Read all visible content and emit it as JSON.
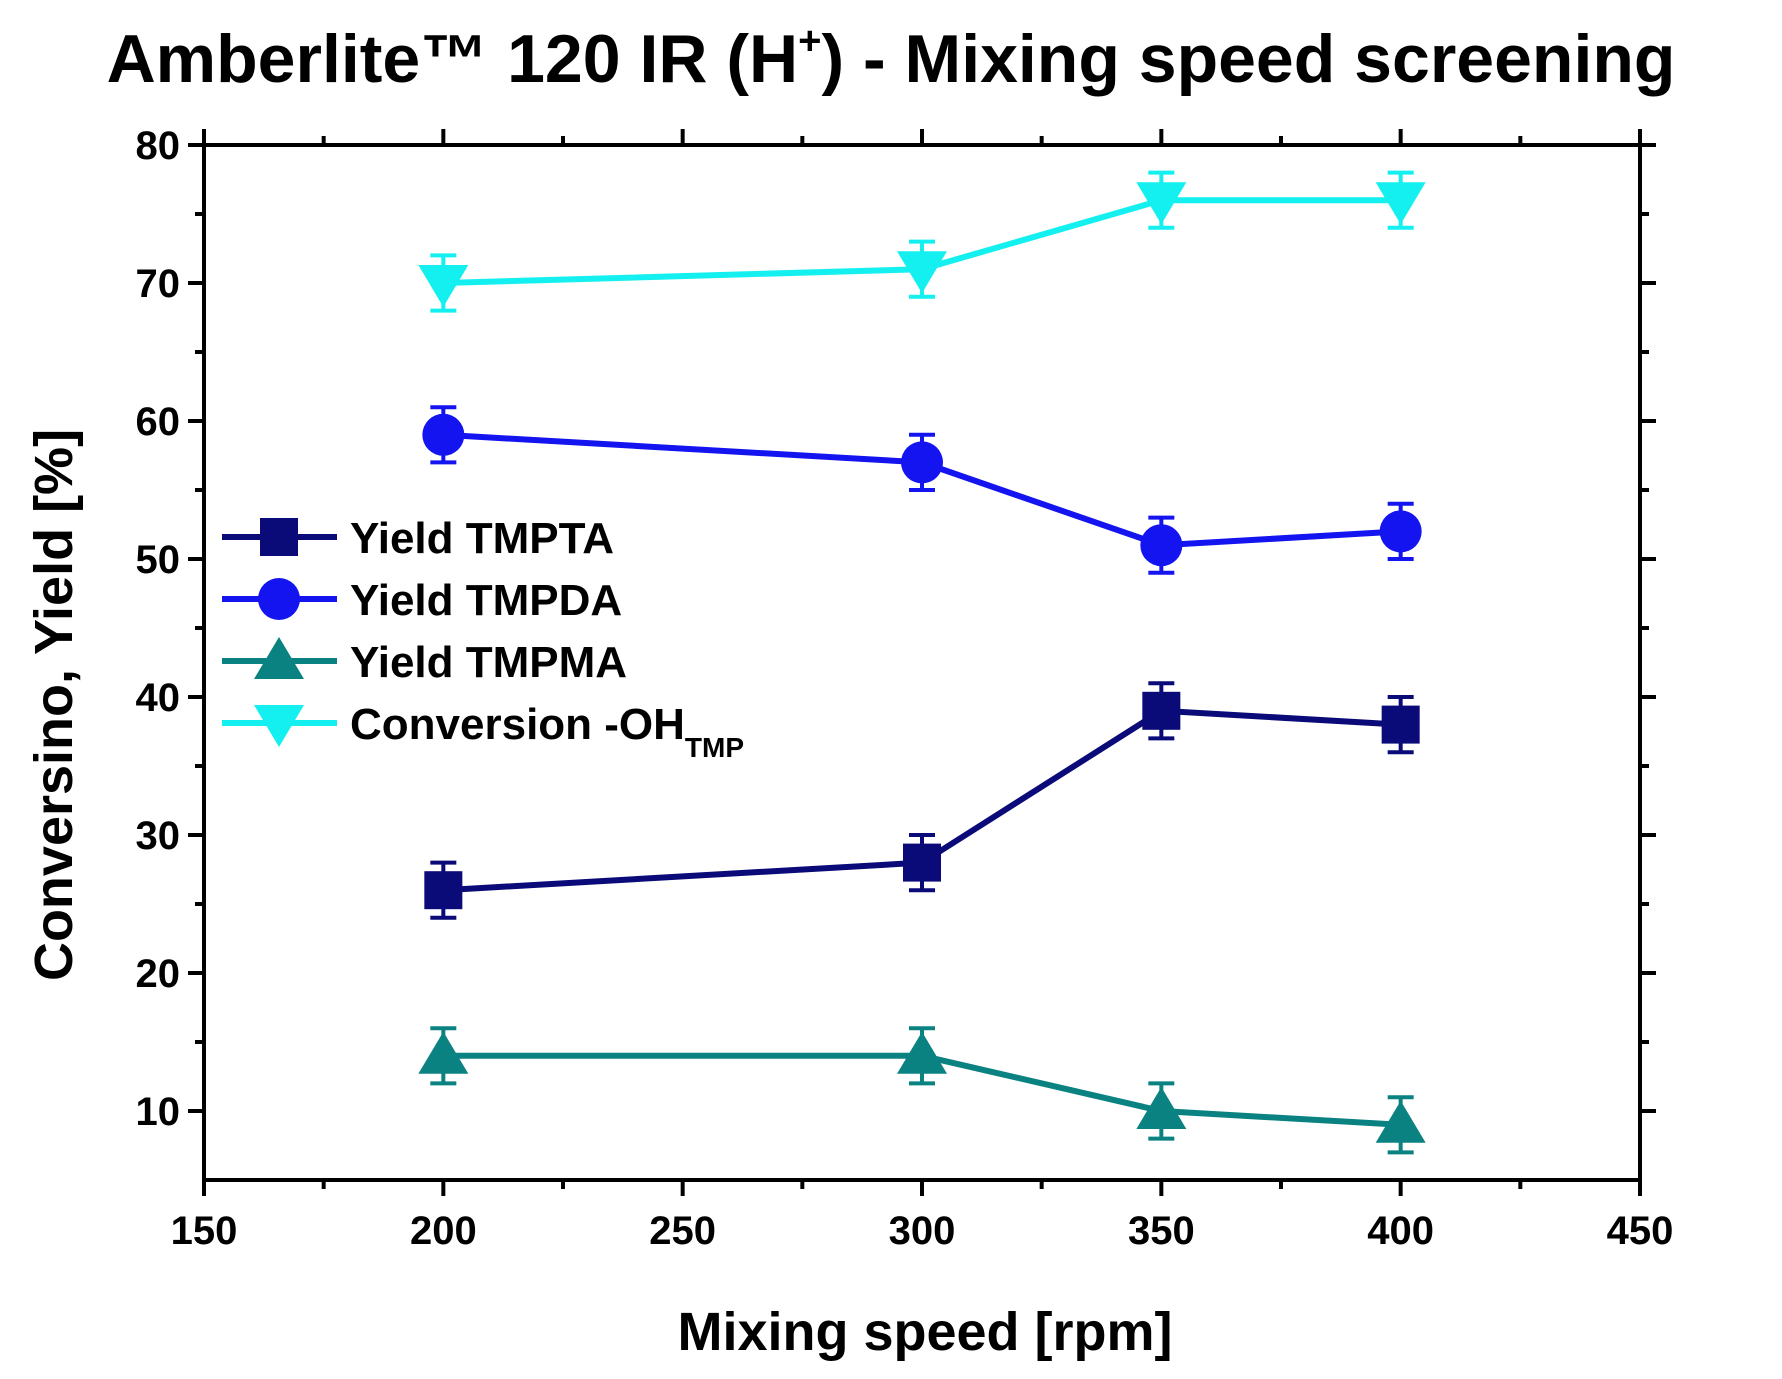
{
  "chart_data": {
    "type": "line",
    "title": "Amberlite™ 120 IR (H+) - Mixing speed screening",
    "title_parts": {
      "main": "Amberlite™ 120 IR (H",
      "superscript": "+",
      "tail": ") - Mixing speed screening"
    },
    "xlabel": "Mixing speed [rpm]",
    "ylabel": "Conversino, Yield [%]",
    "xlim": [
      150,
      450
    ],
    "ylim": [
      5,
      80
    ],
    "xticks": [
      150,
      200,
      250,
      300,
      350,
      400,
      450
    ],
    "yticks": [
      10,
      20,
      30,
      40,
      50,
      60,
      70,
      80
    ],
    "x": [
      200,
      300,
      350,
      400
    ],
    "legend_position": "center-left",
    "series": [
      {
        "name": "Yield TMPTA",
        "label_main": "Yield TMPTA",
        "label_sub": "",
        "marker": "square",
        "color": "#0a0a78",
        "values": [
          26,
          28,
          39,
          38
        ],
        "errors": [
          2,
          2,
          2,
          2
        ]
      },
      {
        "name": "Yield TMPDA",
        "label_main": "Yield TMPDA",
        "label_sub": "",
        "marker": "circle",
        "color": "#1414f0",
        "values": [
          59,
          57,
          51,
          52
        ],
        "errors": [
          2,
          2,
          2,
          2
        ]
      },
      {
        "name": "Yield TMPMA",
        "label_main": "Yield TMPMA",
        "label_sub": "",
        "marker": "triangle-up",
        "color": "#0a8282",
        "values": [
          14,
          14,
          10,
          9
        ],
        "errors": [
          2,
          2,
          2,
          2
        ]
      },
      {
        "name": "Conversion -OH TMP",
        "label_main": "Conversion -OH",
        "label_sub": "TMP",
        "marker": "triangle-down",
        "color": "#14f0f0",
        "values": [
          70,
          71,
          76,
          76
        ],
        "errors": [
          2,
          2,
          2,
          2
        ]
      }
    ]
  }
}
